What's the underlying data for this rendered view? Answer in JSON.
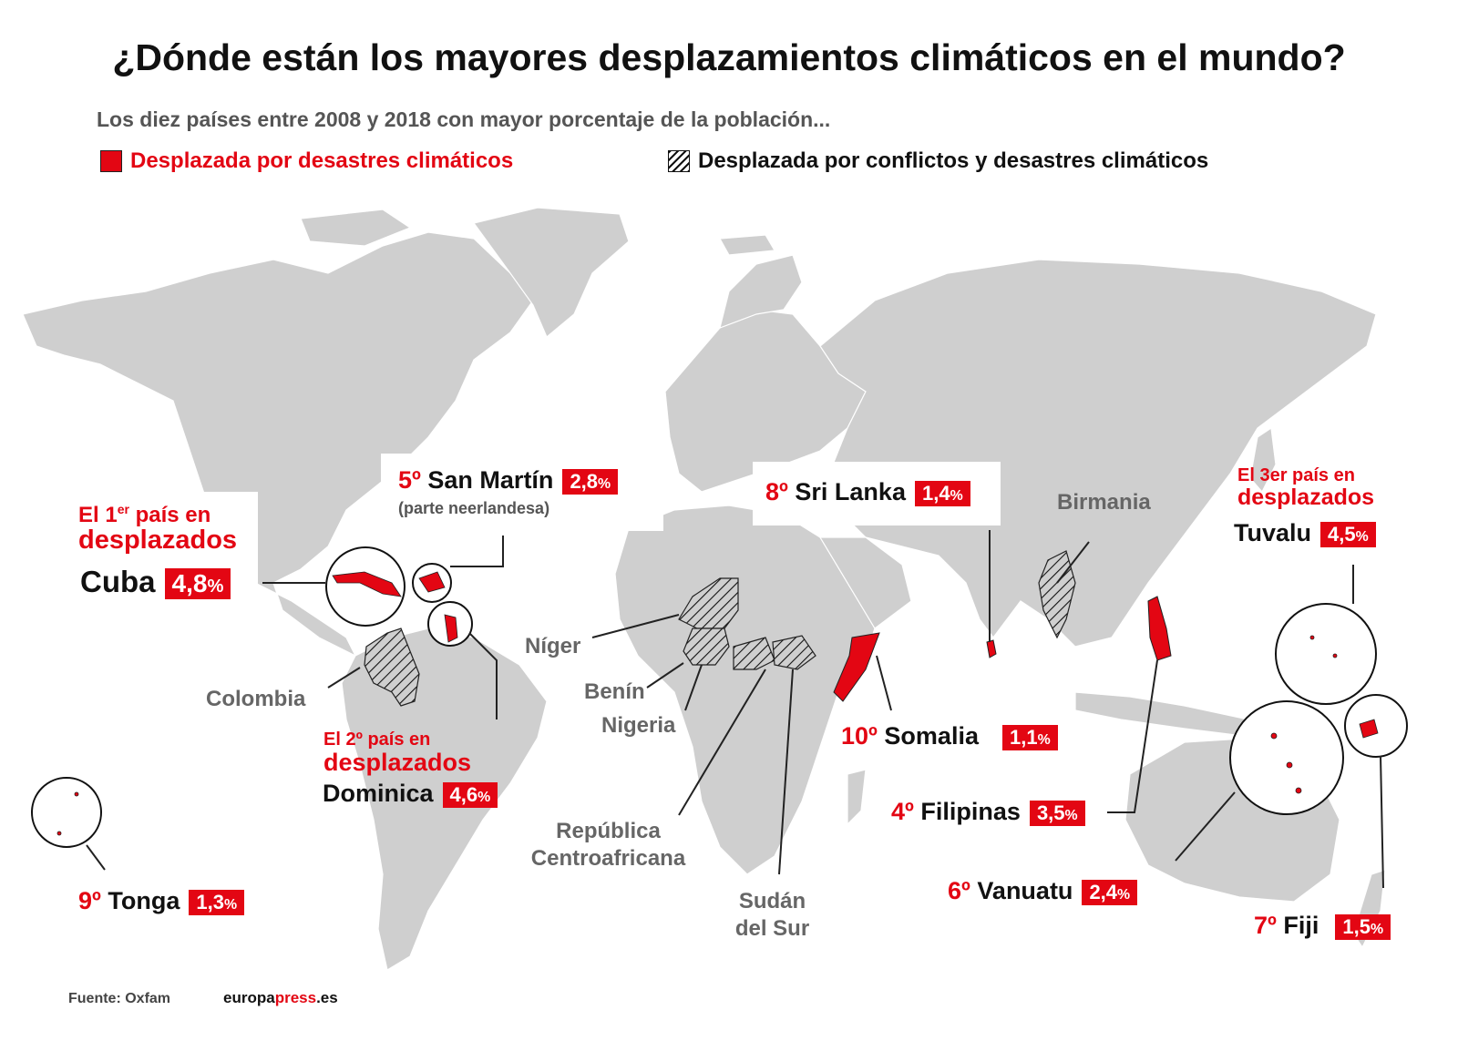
{
  "title": "¿Dónde están los mayores desplazamientos climáticos en el mundo?",
  "subtitle": "Los diez países entre 2008 y 2018 con mayor porcentaje de la población...",
  "legend": {
    "climate": "Desplazada por desastres climáticos",
    "conflict": "Desplazada por conflictos y desastres climáticos"
  },
  "colors": {
    "accent": "#e30613",
    "land": "#cfcfcf",
    "border": "#ffffff",
    "hatch": "#111111"
  },
  "countries": [
    {
      "rank": "",
      "name": "Cuba",
      "pct": "4,8",
      "note_line1": "El 1",
      "note_sup": "er",
      "note_line1b": " país en",
      "note_line2": "desplazados"
    },
    {
      "rank": "",
      "name": "Dominica",
      "pct": "4,6",
      "note_line1": "El 2º país en",
      "note_line2": "desplazados"
    },
    {
      "rank": "",
      "name": "Tuvalu",
      "pct": "4,5",
      "note_line1": "El 3er país en",
      "note_line2": "desplazados"
    },
    {
      "rank": "4º",
      "name": "Filipinas",
      "pct": "3,5"
    },
    {
      "rank": "5º",
      "name": "San Martín",
      "pct": "2,8",
      "sub": "(parte neerlandesa)"
    },
    {
      "rank": "6º",
      "name": "Vanuatu",
      "pct": "2,4"
    },
    {
      "rank": "7º",
      "name": "Fiji",
      "pct": "1,5"
    },
    {
      "rank": "8º",
      "name": "Sri Lanka",
      "pct": "1,4"
    },
    {
      "rank": "9º",
      "name": "Tonga",
      "pct": "1,3"
    },
    {
      "rank": "10º",
      "name": "Somalia",
      "pct": "1,1"
    }
  ],
  "conflict_countries": [
    "Birmania",
    "Colombia",
    "Níger",
    "Benín",
    "Nigeria",
    "República Centroafricana",
    "Sudán del Sur"
  ],
  "pct_symbol": "%",
  "footer": {
    "source": "Fuente: Oxfam",
    "brand_a": "europa",
    "brand_b": "press",
    "brand_c": ".es"
  }
}
